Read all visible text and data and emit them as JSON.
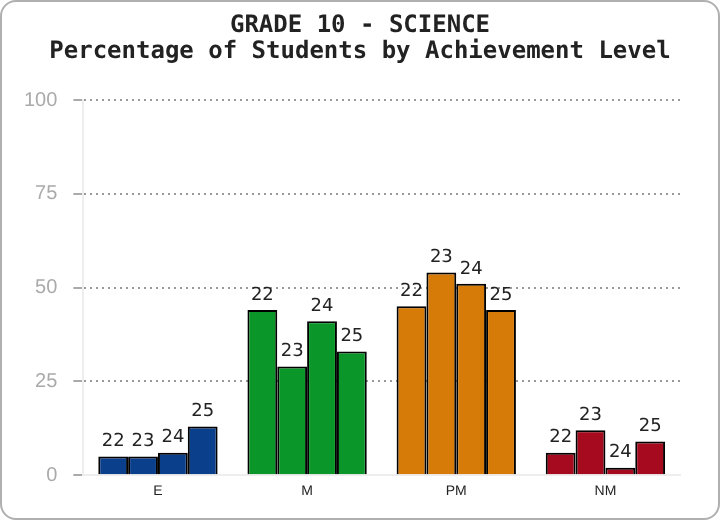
{
  "chart_data": {
    "type": "bar",
    "title": "GRADE 10 - SCIENCE",
    "subtitle": "Percentage of Students by Achievement Level",
    "categories": [
      "E",
      "M",
      "PM",
      "NM"
    ],
    "series": [
      {
        "name": "22",
        "colors": [
          "#0a3f8c",
          "#0a9628",
          "#d67a08",
          "#a50a1e"
        ],
        "values": [
          5,
          44,
          45,
          6
        ]
      },
      {
        "name": "23",
        "colors": [
          "#0a3f8c",
          "#0a9628",
          "#d67a08",
          "#a50a1e"
        ],
        "values": [
          5,
          29,
          54,
          12
        ]
      },
      {
        "name": "24",
        "colors": [
          "#0a3f8c",
          "#0a9628",
          "#d67a08",
          "#a50a1e"
        ],
        "values": [
          6,
          41,
          51,
          2
        ]
      },
      {
        "name": "25",
        "colors": [
          "#0a3f8c",
          "#0a9628",
          "#d67a08",
          "#a50a1e"
        ],
        "values": [
          13,
          33,
          44,
          9
        ]
      }
    ],
    "ylim": [
      0,
      100
    ],
    "yticks": [
      0,
      25,
      50,
      75,
      100
    ],
    "grid": "y",
    "legend": false
  }
}
